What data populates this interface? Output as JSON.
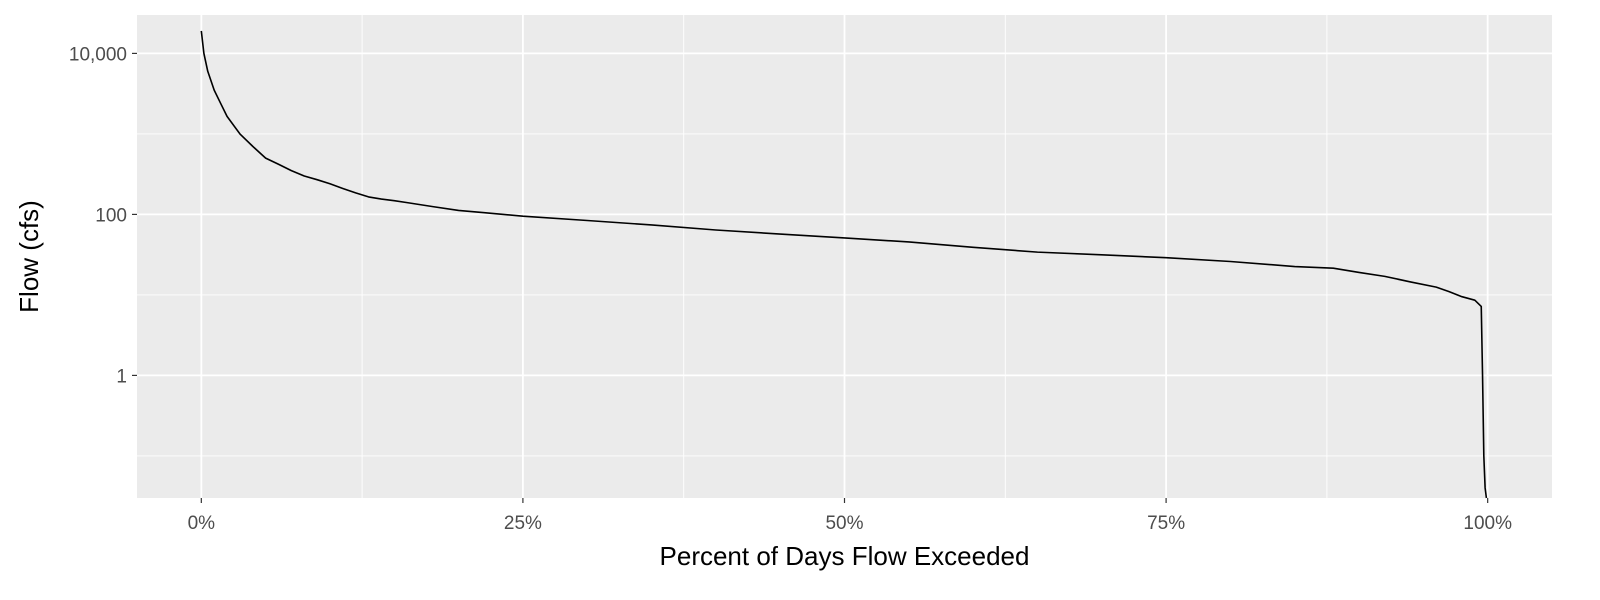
{
  "chart_data": {
    "type": "line",
    "title": "",
    "xlabel": "Percent of Days Flow Exceeded",
    "ylabel": "Flow (cfs)",
    "x_scale": "linear",
    "y_scale": "log10",
    "xlim": [
      -5,
      105
    ],
    "ylim": [
      0.03,
      30000
    ],
    "x_ticks": [
      {
        "value": 0,
        "label": "0%"
      },
      {
        "value": 25,
        "label": "25%"
      },
      {
        "value": 50,
        "label": "50%"
      },
      {
        "value": 75,
        "label": "75%"
      },
      {
        "value": 100,
        "label": "100%"
      }
    ],
    "y_ticks": [
      {
        "value": 1,
        "label": "1"
      },
      {
        "value": 100,
        "label": "100"
      },
      {
        "value": 10000,
        "label": "10,000"
      }
    ],
    "grid": true,
    "panel_background": "#ebebeb",
    "grid_color": "#ffffff",
    "line_color": "#000000",
    "series": [
      {
        "x": [
          0,
          0.2,
          0.5,
          1,
          1.5,
          2,
          3,
          4,
          5,
          6,
          7,
          8,
          9,
          10,
          11,
          12,
          13,
          14,
          15,
          16,
          18,
          20,
          22,
          25,
          30,
          35,
          40,
          45,
          50,
          55,
          60,
          65,
          70,
          75,
          80,
          85,
          88,
          90,
          92,
          94,
          96,
          97,
          98,
          99,
          99.5,
          99.6,
          99.7,
          99.8,
          99.9
        ],
        "y": [
          19000,
          10000,
          6000,
          3500,
          2400,
          1650,
          1000,
          700,
          500,
          420,
          350,
          300,
          270,
          240,
          210,
          185,
          165,
          155,
          148,
          140,
          125,
          112,
          105,
          95,
          84,
          74,
          64,
          57,
          51,
          45.5,
          39,
          34,
          31.5,
          29,
          26,
          22.5,
          21.5,
          19,
          17,
          14.5,
          12.5,
          11,
          9.5,
          8.6,
          7.2,
          1,
          0.1,
          0.04,
          0.03
        ]
      }
    ]
  }
}
